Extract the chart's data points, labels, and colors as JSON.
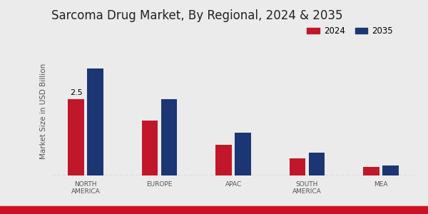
{
  "title": "Sarcoma Drug Market, By Regional, 2024 & 2035",
  "ylabel": "Market Size in USD Billion",
  "categories": [
    "NORTH\nAMERICA",
    "EUROPE",
    "APAC",
    "SOUTH\nAMERICA",
    "MEA"
  ],
  "values_2024": [
    2.5,
    1.8,
    1.0,
    0.55,
    0.28
  ],
  "values_2035": [
    3.5,
    2.5,
    1.4,
    0.75,
    0.33
  ],
  "color_2024": "#c0182a",
  "color_2035": "#1c3674",
  "bar_width": 0.22,
  "annotation_text": "2.5",
  "background_color": "#ebebeb",
  "ylim": [
    0,
    4.2
  ],
  "title_fontsize": 12,
  "label_fontsize": 7.5,
  "tick_fontsize": 6.5,
  "legend_fontsize": 8.5
}
